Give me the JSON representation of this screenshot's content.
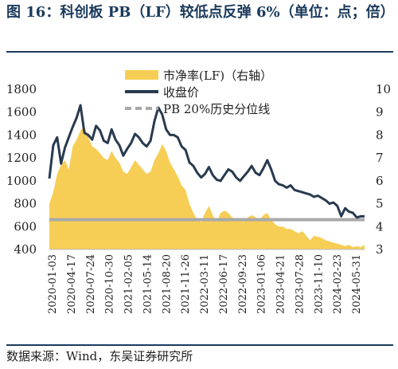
{
  "figure": {
    "title": "图 16：科创板 PB（LF）较低点反弹 6%（单位：点；倍）",
    "source": "数据来源：Wind，东吴证券研究所"
  },
  "colors": {
    "area": "#f7ce55",
    "line": "#283a4f",
    "threshold": "#a9a9a9",
    "title": "#1b3a5c"
  },
  "chart_data": {
    "type": "line",
    "x_tick_labels": [
      "2020-01-03",
      "2020-04-17",
      "2020-07-24",
      "2020-10-30",
      "2021-02-05",
      "2021-05-14",
      "2021-08-20",
      "2021-11-26",
      "2022-03-11",
      "2022-06-17",
      "2022-09-23",
      "2023-01-06",
      "2023-04-21",
      "2023-07-28",
      "2023-11-10",
      "2024-02-23",
      "2024-05-31"
    ],
    "y_left": {
      "range": [
        400,
        1800
      ],
      "ticks": [
        400,
        600,
        800,
        1000,
        1200,
        1400,
        1600,
        1800
      ]
    },
    "y_right": {
      "range": [
        3,
        10
      ],
      "ticks": [
        3,
        4,
        5,
        6,
        7,
        8,
        9,
        10
      ]
    },
    "series": [
      {
        "name": "市净率(LF)（右轴）",
        "type": "area",
        "axis": "right",
        "values": [
          5.0,
          5.5,
          6.3,
          6.7,
          6.9,
          6.5,
          7.5,
          7.8,
          8.2,
          8.4,
          7.9,
          7.5,
          7.4,
          7.2,
          7.0,
          6.9,
          7.3,
          7.0,
          6.8,
          6.4,
          6.3,
          6.6,
          6.9,
          6.7,
          6.5,
          6.3,
          6.4,
          6.9,
          7.2,
          7.6,
          7.3,
          6.8,
          6.5,
          6.2,
          5.8,
          5.6,
          5.0,
          4.6,
          4.3,
          4.2,
          4.6,
          4.9,
          4.5,
          4.2,
          4.6,
          4.7,
          4.6,
          4.4,
          4.3,
          4.3,
          4.2,
          4.4,
          4.5,
          4.4,
          4.3,
          4.5,
          4.6,
          4.3,
          4.1,
          4.0,
          4.0,
          3.9,
          3.9,
          3.8,
          3.7,
          3.8,
          3.6,
          3.4,
          3.6,
          3.55,
          3.5,
          3.4,
          3.35,
          3.3,
          3.25,
          3.2,
          3.15,
          3.2,
          3.1,
          3.15,
          3.1,
          3.2
        ]
      },
      {
        "name": "收盘价",
        "type": "line",
        "axis": "left",
        "values": [
          1020,
          1310,
          1380,
          1150,
          1290,
          1380,
          1470,
          1550,
          1660,
          1420,
          1400,
          1360,
          1480,
          1440,
          1350,
          1330,
          1450,
          1360,
          1310,
          1220,
          1280,
          1330,
          1410,
          1380,
          1330,
          1300,
          1350,
          1520,
          1640,
          1580,
          1450,
          1400,
          1400,
          1380,
          1300,
          1270,
          1160,
          1130,
          1070,
          1030,
          1060,
          1120,
          1050,
          1010,
          1000,
          1050,
          1100,
          1080,
          1030,
          1000,
          1040,
          1080,
          1130,
          1070,
          1050,
          1110,
          1180,
          1100,
          1000,
          970,
          960,
          940,
          960,
          920,
          910,
          900,
          890,
          880,
          860,
          870,
          850,
          830,
          800,
          810,
          780,
          690,
          760,
          730,
          720,
          680,
          690,
          690
        ]
      },
      {
        "name": "PB 20%历史分位线",
        "type": "reference-line",
        "axis": "right",
        "value": 4.3
      }
    ],
    "legend_placement": "top-center",
    "grid": false
  }
}
